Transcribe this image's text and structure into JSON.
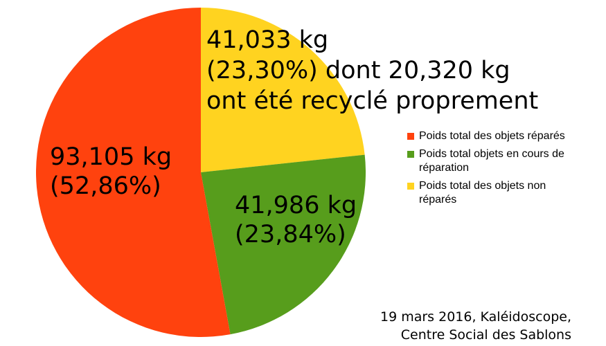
{
  "chart_data": {
    "type": "pie",
    "slices": [
      {
        "name": "Poids total des objets réparés",
        "value": 93.105,
        "percent": 52.86,
        "color": "#ff420e",
        "label_lines": [
          "93,105 kg",
          "(52,86%)"
        ]
      },
      {
        "name": "Poids total objets en cours de réparation",
        "value": 41.986,
        "percent": 23.84,
        "color": "#579d1c",
        "label_lines": [
          "41,986 kg",
          "(23,84%)"
        ]
      },
      {
        "name": "Poids total des objets non réparés",
        "value": 41.033,
        "percent": 23.3,
        "color": "#ffd320",
        "label_lines": [
          "41,033 kg",
          "(23,30%) dont 20,320 kg",
          "ont été recyclé proprement"
        ]
      }
    ],
    "unit": "kg",
    "start_angle_deg": 0,
    "direction": "counterclockwise",
    "legend": {
      "position": "right",
      "items": [
        {
          "label_lines": [
            "Poids total des objets réparés"
          ],
          "color": "#ff420e"
        },
        {
          "label_lines": [
            "Poids total objets en cours de",
            "réparation"
          ],
          "color": "#579d1c"
        },
        {
          "label_lines": [
            "Poids total des objets non",
            "réparés"
          ],
          "color": "#ffd320"
        }
      ]
    },
    "annotation": [
      "19 mars 2016, Kaléidoscope,",
      "Centre Social des Sablons"
    ]
  }
}
